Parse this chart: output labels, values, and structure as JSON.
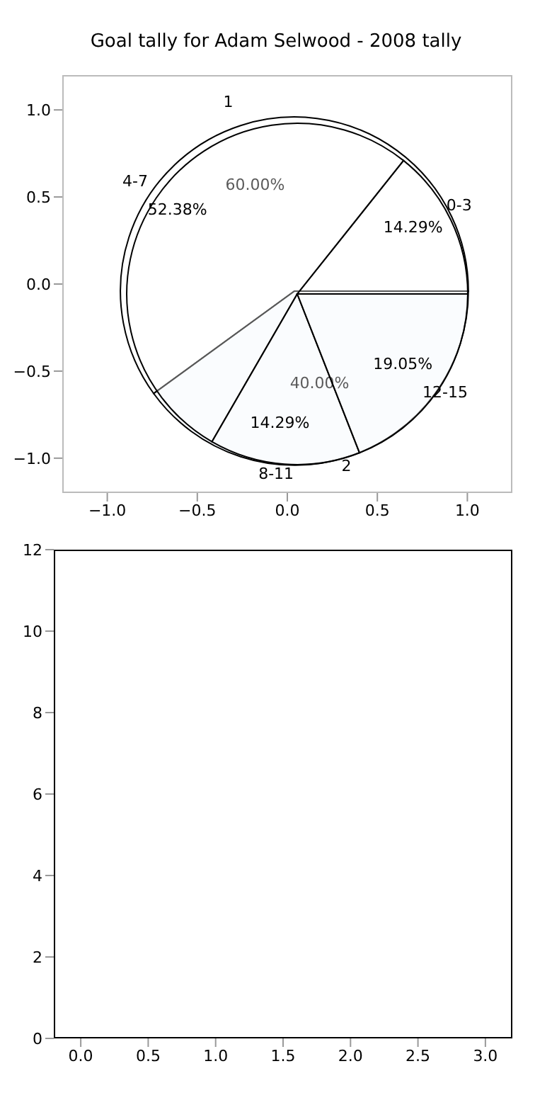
{
  "chart_data": [
    {
      "type": "scatter",
      "title": "Goal tally for Adam Selwood - 2008 tally",
      "xlim": [
        -1.25,
        1.25
      ],
      "ylim": [
        -1.2,
        1.2
      ],
      "xticks": [
        {
          "value": -1,
          "label": "−1.0"
        },
        {
          "value": -0.5,
          "label": "−0.5"
        },
        {
          "value": 0,
          "label": "0.0"
        },
        {
          "value": 0.5,
          "label": "0.5"
        },
        {
          "value": 1,
          "label": "1.0"
        }
      ],
      "yticks": [
        {
          "value": -1,
          "label": "−1.0"
        },
        {
          "value": -0.5,
          "label": "−0.5"
        },
        {
          "value": 0,
          "label": "0.0"
        },
        {
          "value": 0.5,
          "label": "0.5"
        },
        {
          "value": 1,
          "label": "1.0"
        }
      ]
    },
    {
      "type": "pie",
      "categories": [
        "1",
        "2"
      ],
      "values": [
        60,
        40
      ],
      "colors": [
        "#ffffff",
        "#e9f0fc"
      ],
      "value_labels": [
        "60.00%",
        "40.00%"
      ]
    },
    {
      "type": "pie",
      "categories": [
        "0-3",
        "4-7",
        "8-11",
        "12-15"
      ],
      "values": [
        14.29,
        52.38,
        14.29,
        19.05
      ],
      "colors": [
        "#ffffff",
        "#ffffff",
        "#ffffff",
        "#ffffff"
      ],
      "value_labels": [
        "14.29%",
        "52.38%",
        "14.29%",
        "19.05%"
      ]
    },
    {
      "type": "scatter",
      "xlim": [
        -0.2,
        3.2
      ],
      "ylim": [
        0,
        12
      ],
      "xticks": [
        {
          "value": 0,
          "label": "0.0"
        },
        {
          "value": 0.5,
          "label": "0.5"
        },
        {
          "value": 1,
          "label": "1.0"
        },
        {
          "value": 1.5,
          "label": "1.5"
        },
        {
          "value": 2,
          "label": "2.0"
        },
        {
          "value": 2.5,
          "label": "2.5"
        },
        {
          "value": 3,
          "label": "3.0"
        }
      ],
      "yticks": [
        0,
        2,
        4,
        6,
        8,
        10,
        12
      ]
    }
  ]
}
